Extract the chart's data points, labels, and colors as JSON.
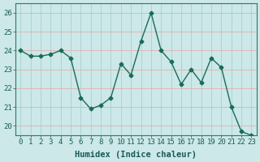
{
  "x": [
    0,
    1,
    2,
    3,
    4,
    5,
    6,
    7,
    8,
    9,
    10,
    11,
    12,
    13,
    14,
    15,
    16,
    17,
    18,
    19,
    20,
    21,
    22,
    23
  ],
  "y": [
    24.0,
    23.7,
    23.7,
    23.8,
    24.0,
    23.6,
    21.5,
    20.9,
    21.1,
    21.5,
    23.3,
    22.7,
    24.5,
    26.0,
    24.0,
    23.4,
    22.2,
    23.0,
    22.3,
    23.6,
    23.1,
    21.0,
    19.7,
    19.5
  ],
  "line_color": "#1a6b5a",
  "marker": "D",
  "marker_size": 2.5,
  "bg_color": "#cce8e8",
  "plot_bg_color": "#cce8e8",
  "grid_color": "#aacfcf",
  "grid_color2": "#e0b0b0",
  "xlabel": "Humidex (Indice chaleur)",
  "ylim": [
    19.5,
    26.5
  ],
  "xlim": [
    -0.5,
    23.5
  ],
  "yticks": [
    20,
    21,
    22,
    23,
    24,
    25,
    26
  ],
  "xticks": [
    0,
    1,
    2,
    3,
    4,
    5,
    6,
    7,
    8,
    9,
    10,
    11,
    12,
    13,
    14,
    15,
    16,
    17,
    18,
    19,
    20,
    21,
    22,
    23
  ],
  "tick_label_fontsize": 6.5,
  "xlabel_fontsize": 7.5,
  "spine_color": "#2a7a6a",
  "tick_color": "#2a7a6a",
  "label_color": "#1a5a5a"
}
